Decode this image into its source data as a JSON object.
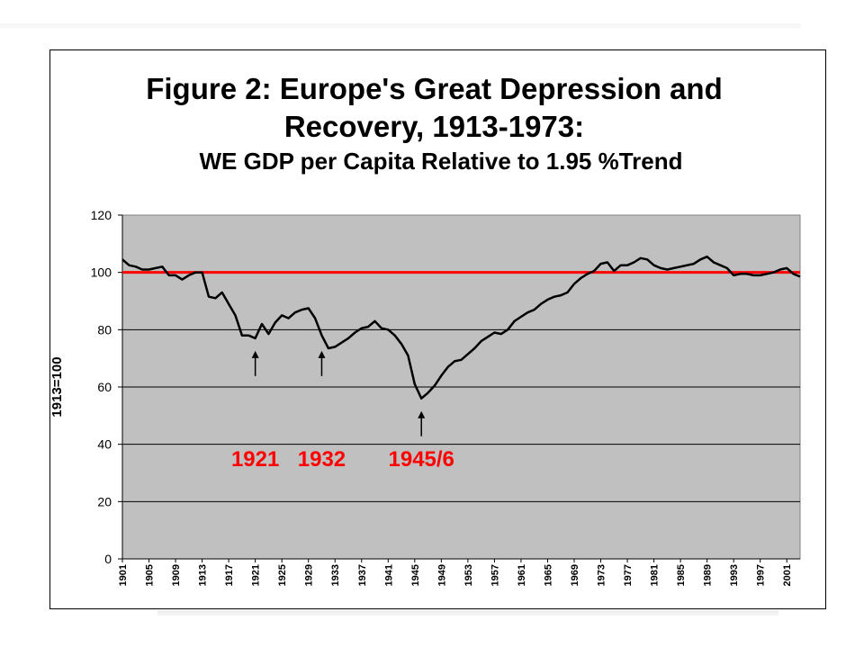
{
  "chart_data": {
    "type": "line",
    "title": "Figure 2: Europe's Great Depression and",
    "title_line2": "Recovery, 1913-1973:",
    "subtitle": "WE GDP per Capita Relative to 1.95 %Trend",
    "ylabel": "1913=100",
    "xlabel": "",
    "ylim": [
      0,
      120
    ],
    "yticks": [
      0,
      20,
      40,
      60,
      80,
      100,
      120
    ],
    "xlim": [
      1901,
      2003
    ],
    "xtick_labels": [
      "1901",
      "1905",
      "1909",
      "1913",
      "1917",
      "1921",
      "1925",
      "1929",
      "1933",
      "1937",
      "1941",
      "1945",
      "1949",
      "1953",
      "1957",
      "1961",
      "1965",
      "1969",
      "1973",
      "1977",
      "1981",
      "1985",
      "1989",
      "1993",
      "1997",
      "2001"
    ],
    "grid": true,
    "plot_background": "#c0c0c0",
    "line_color": "#000000",
    "reference_line": {
      "value": 100,
      "color": "#ff0000"
    },
    "annotations": [
      {
        "label": "1921",
        "year": 1921,
        "color": "#ff0000"
      },
      {
        "label": "1932",
        "year": 1931,
        "color": "#ff0000"
      },
      {
        "label": "1945/6",
        "year": 1946,
        "color": "#ff0000"
      }
    ],
    "series": [
      {
        "x": [
          1901,
          1902,
          1903,
          1904,
          1905,
          1906,
          1907,
          1908,
          1909,
          1910,
          1911,
          1912,
          1913,
          1914,
          1915,
          1916,
          1917,
          1918,
          1919,
          1920,
          1921,
          1922,
          1923,
          1924,
          1925,
          1926,
          1927,
          1928,
          1929,
          1930,
          1931,
          1932,
          1933,
          1934,
          1935,
          1936,
          1937,
          1938,
          1939,
          1940,
          1941,
          1942,
          1943,
          1944,
          1945,
          1946,
          1947,
          1948,
          1949,
          1950,
          1951,
          1952,
          1953,
          1954,
          1955,
          1956,
          1957,
          1958,
          1959,
          1960,
          1961,
          1962,
          1963,
          1964,
          1965,
          1966,
          1967,
          1968,
          1969,
          1970,
          1971,
          1972,
          1973,
          1974,
          1975,
          1976,
          1977,
          1978,
          1979,
          1980,
          1981,
          1982,
          1983,
          1984,
          1985,
          1986,
          1987,
          1988,
          1989,
          1990,
          1991,
          1992,
          1993,
          1994,
          1995,
          1996,
          1997,
          1998,
          1999,
          2000,
          2001,
          2002,
          2003
        ],
        "values": [
          104.5,
          102.5,
          102,
          101,
          101,
          101.5,
          102,
          99,
          99,
          97.5,
          99,
          100,
          100,
          91.5,
          91,
          93,
          89,
          85,
          78,
          78,
          77,
          82,
          78.5,
          82.5,
          85,
          84,
          86,
          87,
          87.5,
          84,
          78,
          73.5,
          74,
          75.5,
          77,
          79,
          80.5,
          81,
          83,
          80.5,
          80,
          78,
          75,
          71,
          61,
          56,
          58,
          60.5,
          64,
          67,
          69,
          69.5,
          71.5,
          73.5,
          76,
          77.5,
          79,
          78.5,
          80,
          83,
          84.5,
          86,
          87,
          89,
          90.5,
          91.5,
          92,
          93,
          96,
          98,
          99.5,
          100.5,
          103,
          103.5,
          100.5,
          102.5,
          102.5,
          103.5,
          105,
          104.5,
          102.5,
          101.5,
          101,
          101.5,
          102,
          102.5,
          103,
          104.5,
          105.5,
          103.5,
          102.5,
          101.5,
          99,
          99.5,
          99.5,
          99,
          99,
          99.5,
          100,
          101,
          101.5,
          99.5,
          98.5
        ]
      }
    ]
  }
}
